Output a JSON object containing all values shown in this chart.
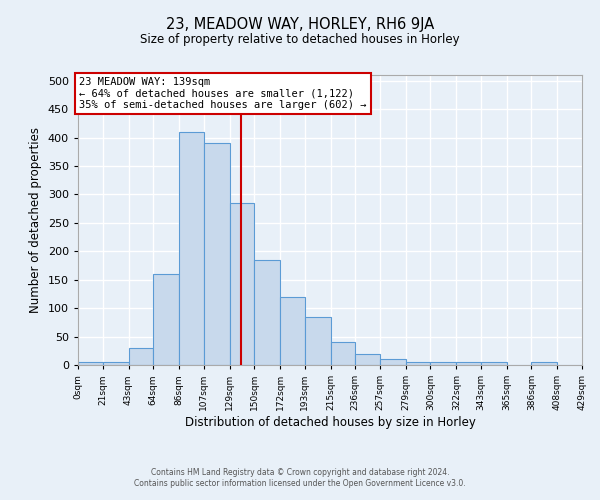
{
  "title": "23, MEADOW WAY, HORLEY, RH6 9JA",
  "subtitle": "Size of property relative to detached houses in Horley",
  "xlabel": "Distribution of detached houses by size in Horley",
  "ylabel": "Number of detached properties",
  "bin_edges": [
    0,
    21,
    43,
    64,
    86,
    107,
    129,
    150,
    172,
    193,
    215,
    236,
    257,
    279,
    300,
    322,
    343,
    365,
    386,
    408,
    429
  ],
  "bar_heights": [
    5,
    5,
    30,
    160,
    410,
    390,
    285,
    185,
    120,
    85,
    40,
    20,
    10,
    5,
    5,
    5,
    5,
    0,
    5,
    0
  ],
  "bar_color": "#c8d9ec",
  "bar_edge_color": "#5b9bd5",
  "vline_x": 139,
  "vline_color": "#cc0000",
  "ylim": [
    0,
    510
  ],
  "yticks": [
    0,
    50,
    100,
    150,
    200,
    250,
    300,
    350,
    400,
    450,
    500
  ],
  "annotation_title": "23 MEADOW WAY: 139sqm",
  "annotation_line1": "← 64% of detached houses are smaller (1,122)",
  "annotation_line2": "35% of semi-detached houses are larger (602) →",
  "annotation_box_color": "#ffffff",
  "annotation_box_edge": "#cc0000",
  "footer_line1": "Contains HM Land Registry data © Crown copyright and database right 2024.",
  "footer_line2": "Contains public sector information licensed under the Open Government Licence v3.0.",
  "background_color": "#e8f0f8",
  "plot_bg_color": "#e8f0f8",
  "grid_color": "#ffffff",
  "tick_labels": [
    "0sqm",
    "21sqm",
    "43sqm",
    "64sqm",
    "86sqm",
    "107sqm",
    "129sqm",
    "150sqm",
    "172sqm",
    "193sqm",
    "215sqm",
    "236sqm",
    "257sqm",
    "279sqm",
    "300sqm",
    "322sqm",
    "343sqm",
    "365sqm",
    "386sqm",
    "408sqm",
    "429sqm"
  ]
}
